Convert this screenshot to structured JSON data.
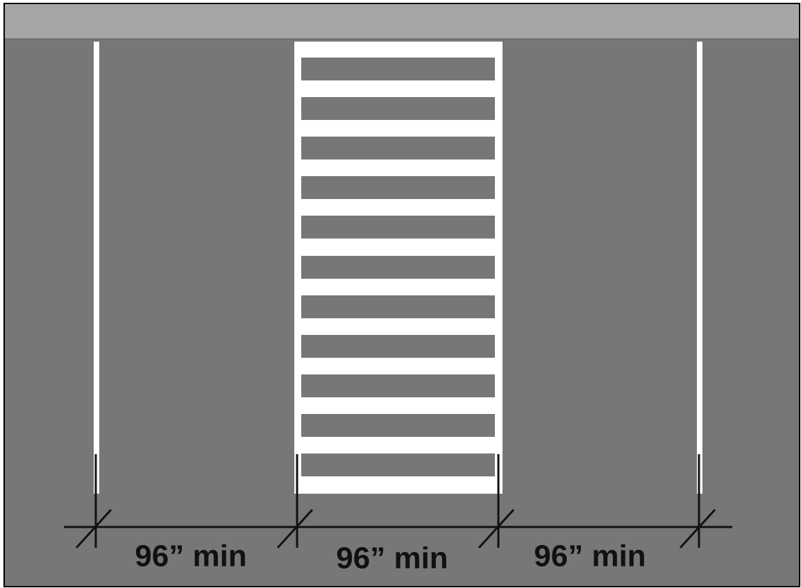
{
  "dimensions": [
    {
      "label": "96” min"
    },
    {
      "label": "96” min"
    },
    {
      "label": "96” min"
    }
  ]
}
